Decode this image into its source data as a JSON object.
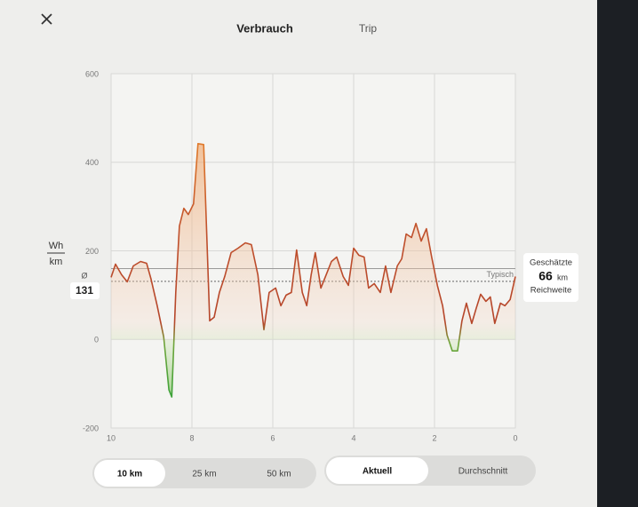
{
  "header": {
    "tabs": [
      "Verbrauch",
      "Trip"
    ]
  },
  "chart_data": {
    "type": "line",
    "y_unit": [
      "Wh",
      "km"
    ],
    "xlim": [
      10,
      0
    ],
    "xticks": [
      10,
      8,
      6,
      4,
      2,
      0
    ],
    "ylim": [
      -200,
      600
    ],
    "yticks": [
      -200,
      0,
      200,
      400,
      600
    ],
    "grid": true,
    "x": [
      10,
      9.89,
      9.74,
      9.6,
      9.45,
      9.27,
      9.12,
      9.01,
      8.86,
      8.7,
      8.57,
      8.5,
      8.4,
      8.31,
      8.2,
      8.09,
      7.96,
      7.85,
      7.71,
      7.56,
      7.45,
      7.32,
      7.19,
      7.03,
      6.86,
      6.68,
      6.53,
      6.37,
      6.22,
      6.09,
      5.93,
      5.8,
      5.67,
      5.54,
      5.41,
      5.27,
      5.16,
      5.05,
      4.95,
      4.81,
      4.68,
      4.55,
      4.42,
      4.26,
      4.13,
      4.0,
      3.87,
      3.74,
      3.63,
      3.49,
      3.34,
      3.21,
      3.08,
      2.92,
      2.81,
      2.7,
      2.57,
      2.46,
      2.33,
      2.2,
      2.07,
      1.93,
      1.8,
      1.69,
      1.56,
      1.43,
      1.32,
      1.21,
      1.08,
      0.97,
      0.86,
      0.73,
      0.62,
      0.51,
      0.37,
      0.26,
      0.13,
      0
    ],
    "series": [
      {
        "color": "#b5452a",
        "values": [
          140,
          170,
          146,
          130,
          166,
          176,
          172,
          136,
          76,
          6,
          -114,
          -130,
          106,
          256,
          296,
          282,
          306,
          442,
          440,
          42,
          50,
          106,
          142,
          196,
          206,
          218,
          214,
          146,
          22,
          106,
          116,
          76,
          100,
          106,
          202,
          106,
          76,
          146,
          196,
          116,
          146,
          176,
          186,
          142,
          122,
          206,
          190,
          186,
          116,
          126,
          106,
          166,
          106,
          166,
          182,
          238,
          230,
          262,
          222,
          250,
          186,
          122,
          76,
          10,
          -26,
          -26,
          42,
          82,
          36,
          70,
          102,
          86,
          96,
          36,
          82,
          76,
          90,
          142
        ]
      }
    ],
    "average": {
      "symbol": "Ø",
      "value": 131
    },
    "typical": {
      "label": "Typisch",
      "value": 160
    }
  },
  "range_estimate": {
    "label_top": "Geschätzte",
    "value": 66,
    "unit": "km",
    "label_bottom": "Reichweite"
  },
  "controls": {
    "distance": {
      "options": [
        "10 km",
        "25 km",
        "50 km"
      ],
      "selected": 0
    },
    "mode": {
      "options": [
        "Aktuell",
        "Durchschnitt"
      ],
      "selected": 0
    }
  }
}
